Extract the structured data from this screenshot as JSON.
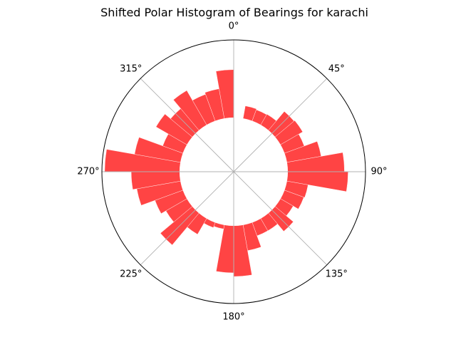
{
  "chart_data": {
    "type": "polar-bar",
    "title": "Shifted Polar Histogram of Bearings for karachi",
    "theta_zero_location": "N",
    "theta_direction": "clockwise",
    "angular_tick_labels": [
      "0°",
      "45°",
      "90°",
      "135°",
      "180°",
      "225°",
      "270°",
      "315°"
    ],
    "angular_tick_values": [
      0,
      45,
      90,
      135,
      180,
      225,
      270,
      315
    ],
    "bin_width_deg": 10,
    "bin_centers_deg": [
      5,
      15,
      25,
      35,
      45,
      55,
      65,
      75,
      85,
      95,
      105,
      115,
      125,
      135,
      145,
      155,
      165,
      175,
      185,
      195,
      205,
      215,
      225,
      235,
      245,
      255,
      265,
      275,
      285,
      295,
      305,
      315,
      325,
      335,
      345,
      355
    ],
    "values": [
      0.0,
      0.28,
      0.26,
      0.27,
      0.54,
      0.56,
      0.46,
      0.76,
      1.24,
      1.32,
      0.47,
      0.45,
      0.32,
      0.52,
      0.31,
      0.31,
      0.57,
      1.11,
      1.03,
      0.09,
      0.12,
      0.4,
      0.91,
      0.53,
      0.65,
      0.97,
      1.06,
      1.64,
      1.02,
      0.47,
      0.78,
      0.62,
      0.87,
      0.62,
      0.66,
      1.05
    ],
    "hole_fraction": 0.41,
    "r_max": 1.7,
    "grid": true,
    "bar_color": "#ff2a2a",
    "bar_alpha": 0.88,
    "grid_color": "#b0b0b0"
  }
}
